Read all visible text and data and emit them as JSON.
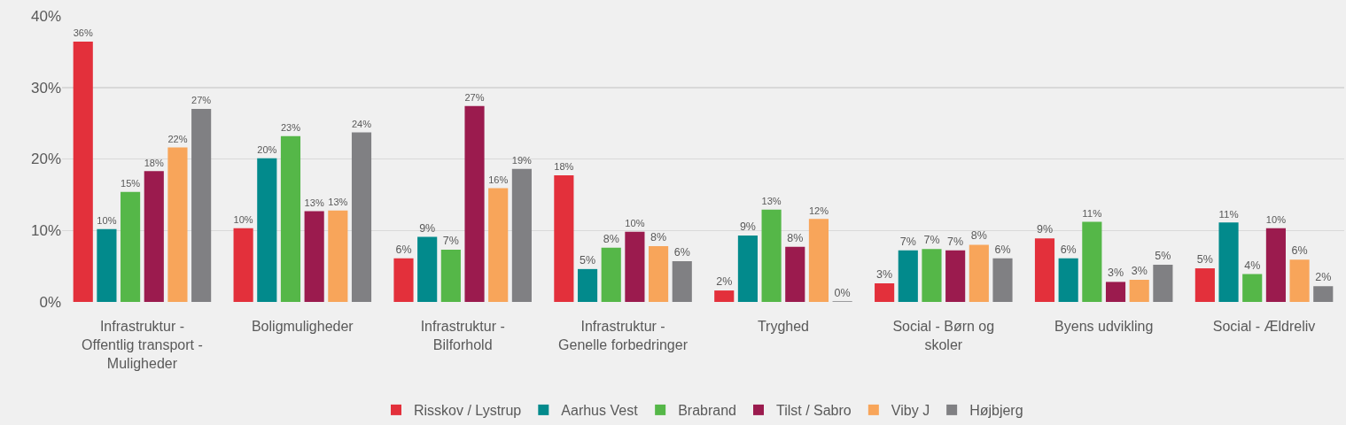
{
  "chart_data": {
    "type": "bar",
    "categories": [
      "Infrastruktur - Offentlig transport - Muligheder",
      "Boligmuligheder",
      "Infrastruktur - Bilforhold",
      "Infrastruktur - Genelle forbedringer",
      "Tryghed",
      "Social - Børn og skoler",
      "Byens udvikling",
      "Social - Ældreliv"
    ],
    "series": [
      {
        "name": "Risskov / Lystrup",
        "color": "#e3303b",
        "values": [
          36.4,
          10.3,
          6.1,
          17.7,
          1.6,
          2.6,
          8.9,
          4.7
        ],
        "value_labels": [
          "36%",
          "10%",
          "6%",
          "18%",
          "2%",
          "3%",
          "9%",
          "5%"
        ]
      },
      {
        "name": "Aarhus Vest",
        "color": "#028a8c",
        "values": [
          10.2,
          20.1,
          9.1,
          4.6,
          9.3,
          7.2,
          6.1,
          11.1
        ],
        "value_labels": [
          "10%",
          "20%",
          "9%",
          "5%",
          "9%",
          "7%",
          "6%",
          "11%"
        ]
      },
      {
        "name": "Brabrand",
        "color": "#55b748",
        "values": [
          15.4,
          23.2,
          7.3,
          7.6,
          12.9,
          7.4,
          11.2,
          3.9
        ],
        "value_labels": [
          "15%",
          "23%",
          "7%",
          "8%",
          "13%",
          "7%",
          "11%",
          "4%"
        ]
      },
      {
        "name": "Tilst / Sabro",
        "color": "#9b1b4e",
        "values": [
          18.3,
          12.7,
          27.4,
          9.8,
          7.7,
          7.2,
          2.8,
          10.3
        ],
        "value_labels": [
          "18%",
          "13%",
          "27%",
          "10%",
          "8%",
          "7%",
          "3%",
          "10%"
        ]
      },
      {
        "name": "Viby J",
        "color": "#f8a55a",
        "values": [
          21.6,
          12.8,
          15.9,
          7.8,
          11.6,
          8.0,
          3.1,
          5.9
        ],
        "value_labels": [
          "22%",
          "13%",
          "16%",
          "8%",
          "12%",
          "8%",
          "3%",
          "6%"
        ]
      },
      {
        "name": "Højbjerg",
        "color": "#808083",
        "values": [
          27.0,
          23.7,
          18.6,
          5.7,
          0,
          6.1,
          5.2,
          2.2
        ],
        "value_labels": [
          "27%",
          "24%",
          "19%",
          "6%",
          "0%",
          "6%",
          "5%",
          "2%"
        ]
      }
    ],
    "ylim": [
      0,
      40
    ],
    "yticks": [
      {
        "value": 0,
        "label": "0%"
      },
      {
        "value": 10,
        "label": "10%"
      },
      {
        "value": 20,
        "label": "20%"
      },
      {
        "value": 30,
        "label": "30%"
      },
      {
        "value": 40,
        "label": "40%"
      }
    ],
    "grid": "y",
    "legend": "bottom"
  }
}
